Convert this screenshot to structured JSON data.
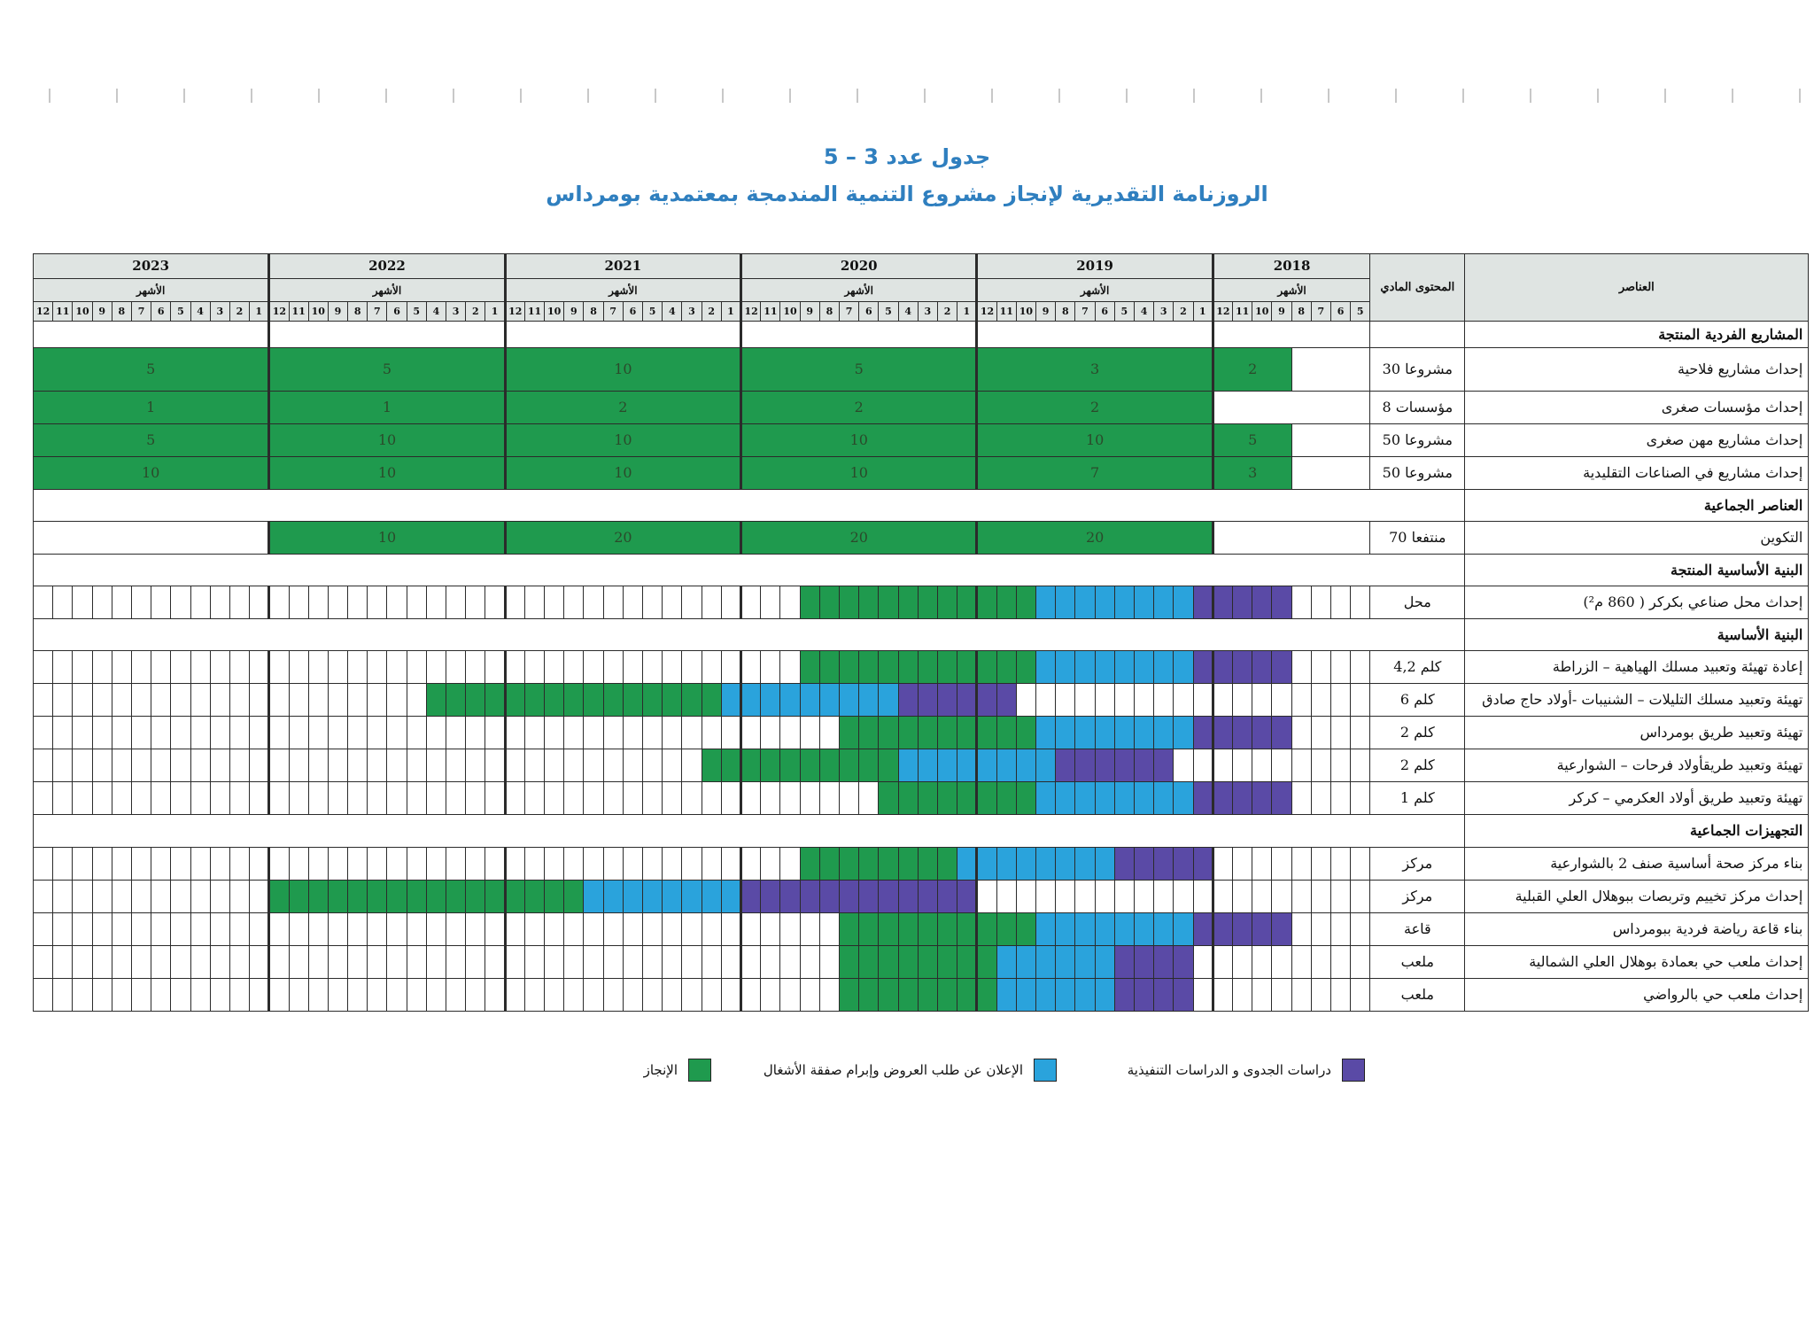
{
  "title": {
    "line1": "جدول عدد 3 – 5",
    "line2": "الروزنامة التقديرية لإنجاز مشروع التنمية المندمجة بمعتمدية بومرداس"
  },
  "header": {
    "elements_label": "العناصر",
    "content_label": "المحتوى المادي",
    "months_label": "الأشهر",
    "years": [
      {
        "year": "2023",
        "months": [
          12,
          11,
          10,
          9,
          8,
          7,
          6,
          5,
          4,
          3,
          2,
          1
        ]
      },
      {
        "year": "2022",
        "months": [
          12,
          11,
          10,
          9,
          8,
          7,
          6,
          5,
          4,
          3,
          2,
          1
        ]
      },
      {
        "year": "2021",
        "months": [
          12,
          11,
          10,
          9,
          8,
          7,
          6,
          5,
          4,
          3,
          2,
          1
        ]
      },
      {
        "year": "2020",
        "months": [
          12,
          11,
          10,
          9,
          8,
          7,
          6,
          5,
          4,
          3,
          2,
          1
        ]
      },
      {
        "year": "2019",
        "months": [
          12,
          11,
          10,
          9,
          8,
          7,
          6,
          5,
          4,
          3,
          2,
          1
        ]
      },
      {
        "year": "2018",
        "months": [
          12,
          11,
          10,
          9,
          8,
          7,
          6,
          5
        ]
      }
    ]
  },
  "rows": [
    {
      "type": "section",
      "label": "المشاريع الفردية المنتجة",
      "wall": "full"
    },
    {
      "type": "values",
      "label": "إحداث مشاريع فلاحية",
      "qty": "30 مشروعا",
      "segments": [
        [
          0,
          12,
          "5"
        ],
        [
          12,
          24,
          "5"
        ],
        [
          24,
          36,
          "10"
        ],
        [
          36,
          48,
          "5"
        ],
        [
          48,
          60,
          "3"
        ],
        [
          60,
          64,
          "2"
        ]
      ]
    },
    {
      "type": "values",
      "label": "إحداث  مؤسسات صغرى",
      "qty": "8 مؤسسات",
      "segments": [
        [
          0,
          12,
          "1"
        ],
        [
          12,
          24,
          "1"
        ],
        [
          24,
          36,
          "2"
        ],
        [
          36,
          48,
          "2"
        ],
        [
          48,
          60,
          "2"
        ]
      ]
    },
    {
      "type": "values",
      "label": "إحداث مشاريع مهن صغرى",
      "qty": "50 مشروعا",
      "segments": [
        [
          0,
          12,
          "5"
        ],
        [
          12,
          24,
          "10"
        ],
        [
          24,
          36,
          "10"
        ],
        [
          36,
          48,
          "10"
        ],
        [
          48,
          60,
          "10"
        ],
        [
          60,
          64,
          "5"
        ]
      ]
    },
    {
      "type": "values",
      "label": "إحداث مشاريع في الصناعات التقليدية",
      "qty": "50 مشروعا",
      "segments": [
        [
          0,
          12,
          "10"
        ],
        [
          12,
          24,
          "10"
        ],
        [
          24,
          36,
          "10"
        ],
        [
          36,
          48,
          "10"
        ],
        [
          48,
          60,
          "7"
        ],
        [
          60,
          64,
          "3"
        ]
      ]
    },
    {
      "type": "section",
      "label": "العناصر الجماعية",
      "wall": "none"
    },
    {
      "type": "values",
      "label": "التكوين",
      "qty": "70 منتفعا",
      "segments": [
        [
          12,
          24,
          "10"
        ],
        [
          24,
          36,
          "20"
        ],
        [
          36,
          48,
          "20"
        ],
        [
          48,
          60,
          "20"
        ]
      ]
    },
    {
      "type": "section",
      "label": "البنية الأساسية المنتجة",
      "wall": "none"
    },
    {
      "type": "months",
      "label": "إحداث محل صناعي بكركر ( 860 م²)",
      "qty": "محل",
      "phases": [
        {
          "from": 39,
          "to": 51,
          "phase": "a"
        },
        {
          "from": 51,
          "to": 59,
          "phase": "b"
        },
        {
          "from": 59,
          "to": 64,
          "phase": "c"
        }
      ]
    },
    {
      "type": "section",
      "label": "البنية الأساسية",
      "wall": "none"
    },
    {
      "type": "months",
      "label": "إعادة تهيئة وتعبيد مسلك الهياهية – الزراطة",
      "qty": "4,2 كلم",
      "phases": [
        {
          "from": 39,
          "to": 51,
          "phase": "a"
        },
        {
          "from": 51,
          "to": 59,
          "phase": "b"
        },
        {
          "from": 59,
          "to": 64,
          "phase": "c"
        }
      ]
    },
    {
      "type": "months",
      "label": "تهيئة وتعبيد مسلك التليلات – الشنيبات -أولاد حاج صادق",
      "qty": "6 كلم",
      "phases": [
        {
          "from": 20,
          "to": 35,
          "phase": "a"
        },
        {
          "from": 35,
          "to": 44,
          "phase": "b"
        },
        {
          "from": 44,
          "to": 50,
          "phase": "c"
        }
      ]
    },
    {
      "type": "months",
      "label": "تهيئة وتعبيد طريق بومرداس",
      "qty": "2 كلم",
      "phases": [
        {
          "from": 41,
          "to": 51,
          "phase": "a"
        },
        {
          "from": 51,
          "to": 59,
          "phase": "b"
        },
        {
          "from": 59,
          "to": 64,
          "phase": "c"
        }
      ]
    },
    {
      "type": "months",
      "label": "تهيئة وتعبيد طريقأولاد فرحات – الشوارعية",
      "qty": "2 كلم",
      "phases": [
        {
          "from": 34,
          "to": 44,
          "phase": "a"
        },
        {
          "from": 44,
          "to": 52,
          "phase": "b"
        },
        {
          "from": 52,
          "to": 58,
          "phase": "c"
        }
      ]
    },
    {
      "type": "months",
      "label": "تهيئة وتعبيد طريق أولاد العكرمي – كركر",
      "qty": "1 كلم",
      "phases": [
        {
          "from": 43,
          "to": 51,
          "phase": "a"
        },
        {
          "from": 51,
          "to": 59,
          "phase": "b"
        },
        {
          "from": 59,
          "to": 64,
          "phase": "c"
        }
      ]
    },
    {
      "type": "section",
      "label": "التجهيزات الجماعية",
      "wall": "none"
    },
    {
      "type": "months",
      "label": "بناء مركز صحة أساسية صنف 2 بالشوارعية",
      "qty": "مركز",
      "phases": [
        {
          "from": 39,
          "to": 47,
          "phase": "a"
        },
        {
          "from": 47,
          "to": 55,
          "phase": "b"
        },
        {
          "from": 55,
          "to": 60,
          "phase": "c"
        }
      ]
    },
    {
      "type": "months",
      "label": "إحداث مركز تخييم وتربصات ببوهلال العلي القبلية",
      "qty": "مركز",
      "phases": [
        {
          "from": 12,
          "to": 28,
          "phase": "a"
        },
        {
          "from": 28,
          "to": 36,
          "phase": "b"
        },
        {
          "from": 36,
          "to": 48,
          "phase": "c"
        }
      ]
    },
    {
      "type": "months",
      "label": "بناء قاعة رياضة فردية ببومرداس",
      "qty": "قاعة",
      "phases": [
        {
          "from": 41,
          "to": 51,
          "phase": "a"
        },
        {
          "from": 51,
          "to": 59,
          "phase": "b"
        },
        {
          "from": 59,
          "to": 64,
          "phase": "c"
        }
      ]
    },
    {
      "type": "months",
      "label": "إحداث ملعب حي بعمادة بوهلال العلي الشمالية",
      "qty": "ملعب",
      "phases": [
        {
          "from": 41,
          "to": 49,
          "phase": "a"
        },
        {
          "from": 49,
          "to": 55,
          "phase": "b"
        },
        {
          "from": 55,
          "to": 59,
          "phase": "c"
        }
      ]
    },
    {
      "type": "months",
      "label": "إحداث ملعب حي بالرواضي",
      "qty": "ملعب",
      "phases": [
        {
          "from": 41,
          "to": 49,
          "phase": "a"
        },
        {
          "from": 49,
          "to": 55,
          "phase": "b"
        },
        {
          "from": 55,
          "to": 59,
          "phase": "c"
        }
      ]
    }
  ],
  "legend": [
    {
      "phase": "a",
      "label": "الإنجاز",
      "color": "#1f9a4e"
    },
    {
      "phase": "b",
      "label": "الإعلان عن طلب العروض وإبرام صفقة الأشغال",
      "color": "#2aa3dc"
    },
    {
      "phase": "c",
      "label": "دراسات الجدوى و الدراسات التنفيذية",
      "color": "#5a4aa6"
    }
  ]
}
